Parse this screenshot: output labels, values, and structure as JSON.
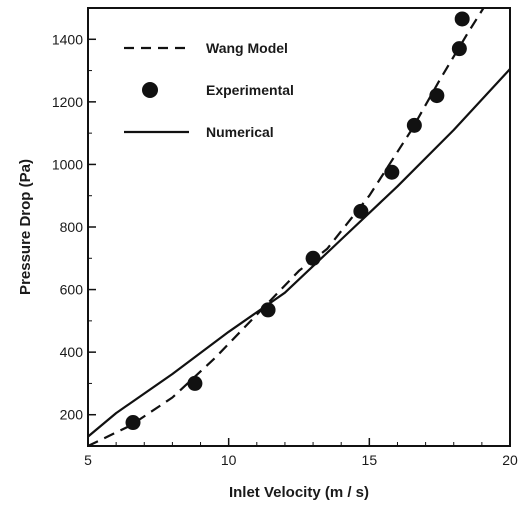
{
  "chart_data": {
    "type": "line",
    "xlabel": "Inlet Velocity (m / s)",
    "ylabel": "Pressure Drop (Pa)",
    "xlim": [
      5,
      20
    ],
    "ylim": [
      100,
      1500
    ],
    "xticks": [
      5,
      10,
      15,
      20
    ],
    "yticks": [
      200,
      400,
      600,
      800,
      1000,
      1200,
      1400
    ],
    "grid": false,
    "legend_position": "top-left",
    "series": [
      {
        "name": "Wang Model",
        "style": "dashed-line",
        "color": "#111111",
        "x": [
          5.0,
          6.5,
          8.0,
          9.5,
          11.0,
          12.5,
          13.5,
          15.0,
          16.5,
          17.5,
          18.5,
          19.2
        ],
        "y": [
          100,
          165,
          255,
          380,
          520,
          660,
          730,
          900,
          1110,
          1270,
          1420,
          1520
        ]
      },
      {
        "name": "Experimental",
        "style": "markers",
        "color": "#111111",
        "x": [
          6.6,
          8.8,
          11.4,
          13.0,
          14.7,
          15.8,
          16.6,
          17.4,
          18.2,
          18.3
        ],
        "y": [
          175,
          300,
          535,
          700,
          850,
          975,
          1125,
          1220,
          1370,
          1465
        ]
      },
      {
        "name": "Numerical",
        "style": "solid-line",
        "color": "#111111",
        "x": [
          5.0,
          6.0,
          8.0,
          10.0,
          12.0,
          14.0,
          16.0,
          18.0,
          20.0
        ],
        "y": [
          130,
          205,
          330,
          465,
          590,
          760,
          930,
          1110,
          1305
        ]
      }
    ]
  }
}
